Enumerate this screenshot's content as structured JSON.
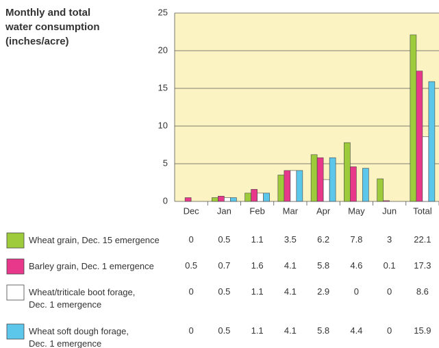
{
  "chart_data": {
    "type": "bar",
    "title": "Monthly and total\nwater consumption\n(inches/acre)",
    "categories": [
      "Dec",
      "Jan",
      "Feb",
      "Mar",
      "Apr",
      "May",
      "Jun",
      "Total"
    ],
    "series": [
      {
        "name": "Wheat grain, Dec. 15 emergence",
        "color": "#9dcb3b",
        "values": [
          0,
          0.5,
          1.1,
          3.5,
          6.2,
          7.8,
          3,
          22.1
        ]
      },
      {
        "name": "Barley grain, Dec. 1 emergence",
        "color": "#e8388b",
        "values": [
          0.5,
          0.7,
          1.6,
          4.1,
          5.8,
          4.6,
          0.1,
          17.3
        ]
      },
      {
        "name": "Wheat/triticale boot forage,\nDec. 1 emergence",
        "color": "#ffffff",
        "values": [
          0,
          0.5,
          1.1,
          4.1,
          2.9,
          0,
          0,
          8.6
        ]
      },
      {
        "name": "Wheat soft dough forage,\nDec. 1 emergence",
        "color": "#5cc7ea",
        "values": [
          0,
          0.5,
          1.1,
          4.1,
          5.8,
          4.4,
          0,
          15.9
        ]
      }
    ],
    "ylim": [
      0,
      25
    ],
    "yticks": [
      0,
      5,
      10,
      15,
      20,
      25
    ],
    "grid": true,
    "plot_background": "#fbf4c2"
  }
}
